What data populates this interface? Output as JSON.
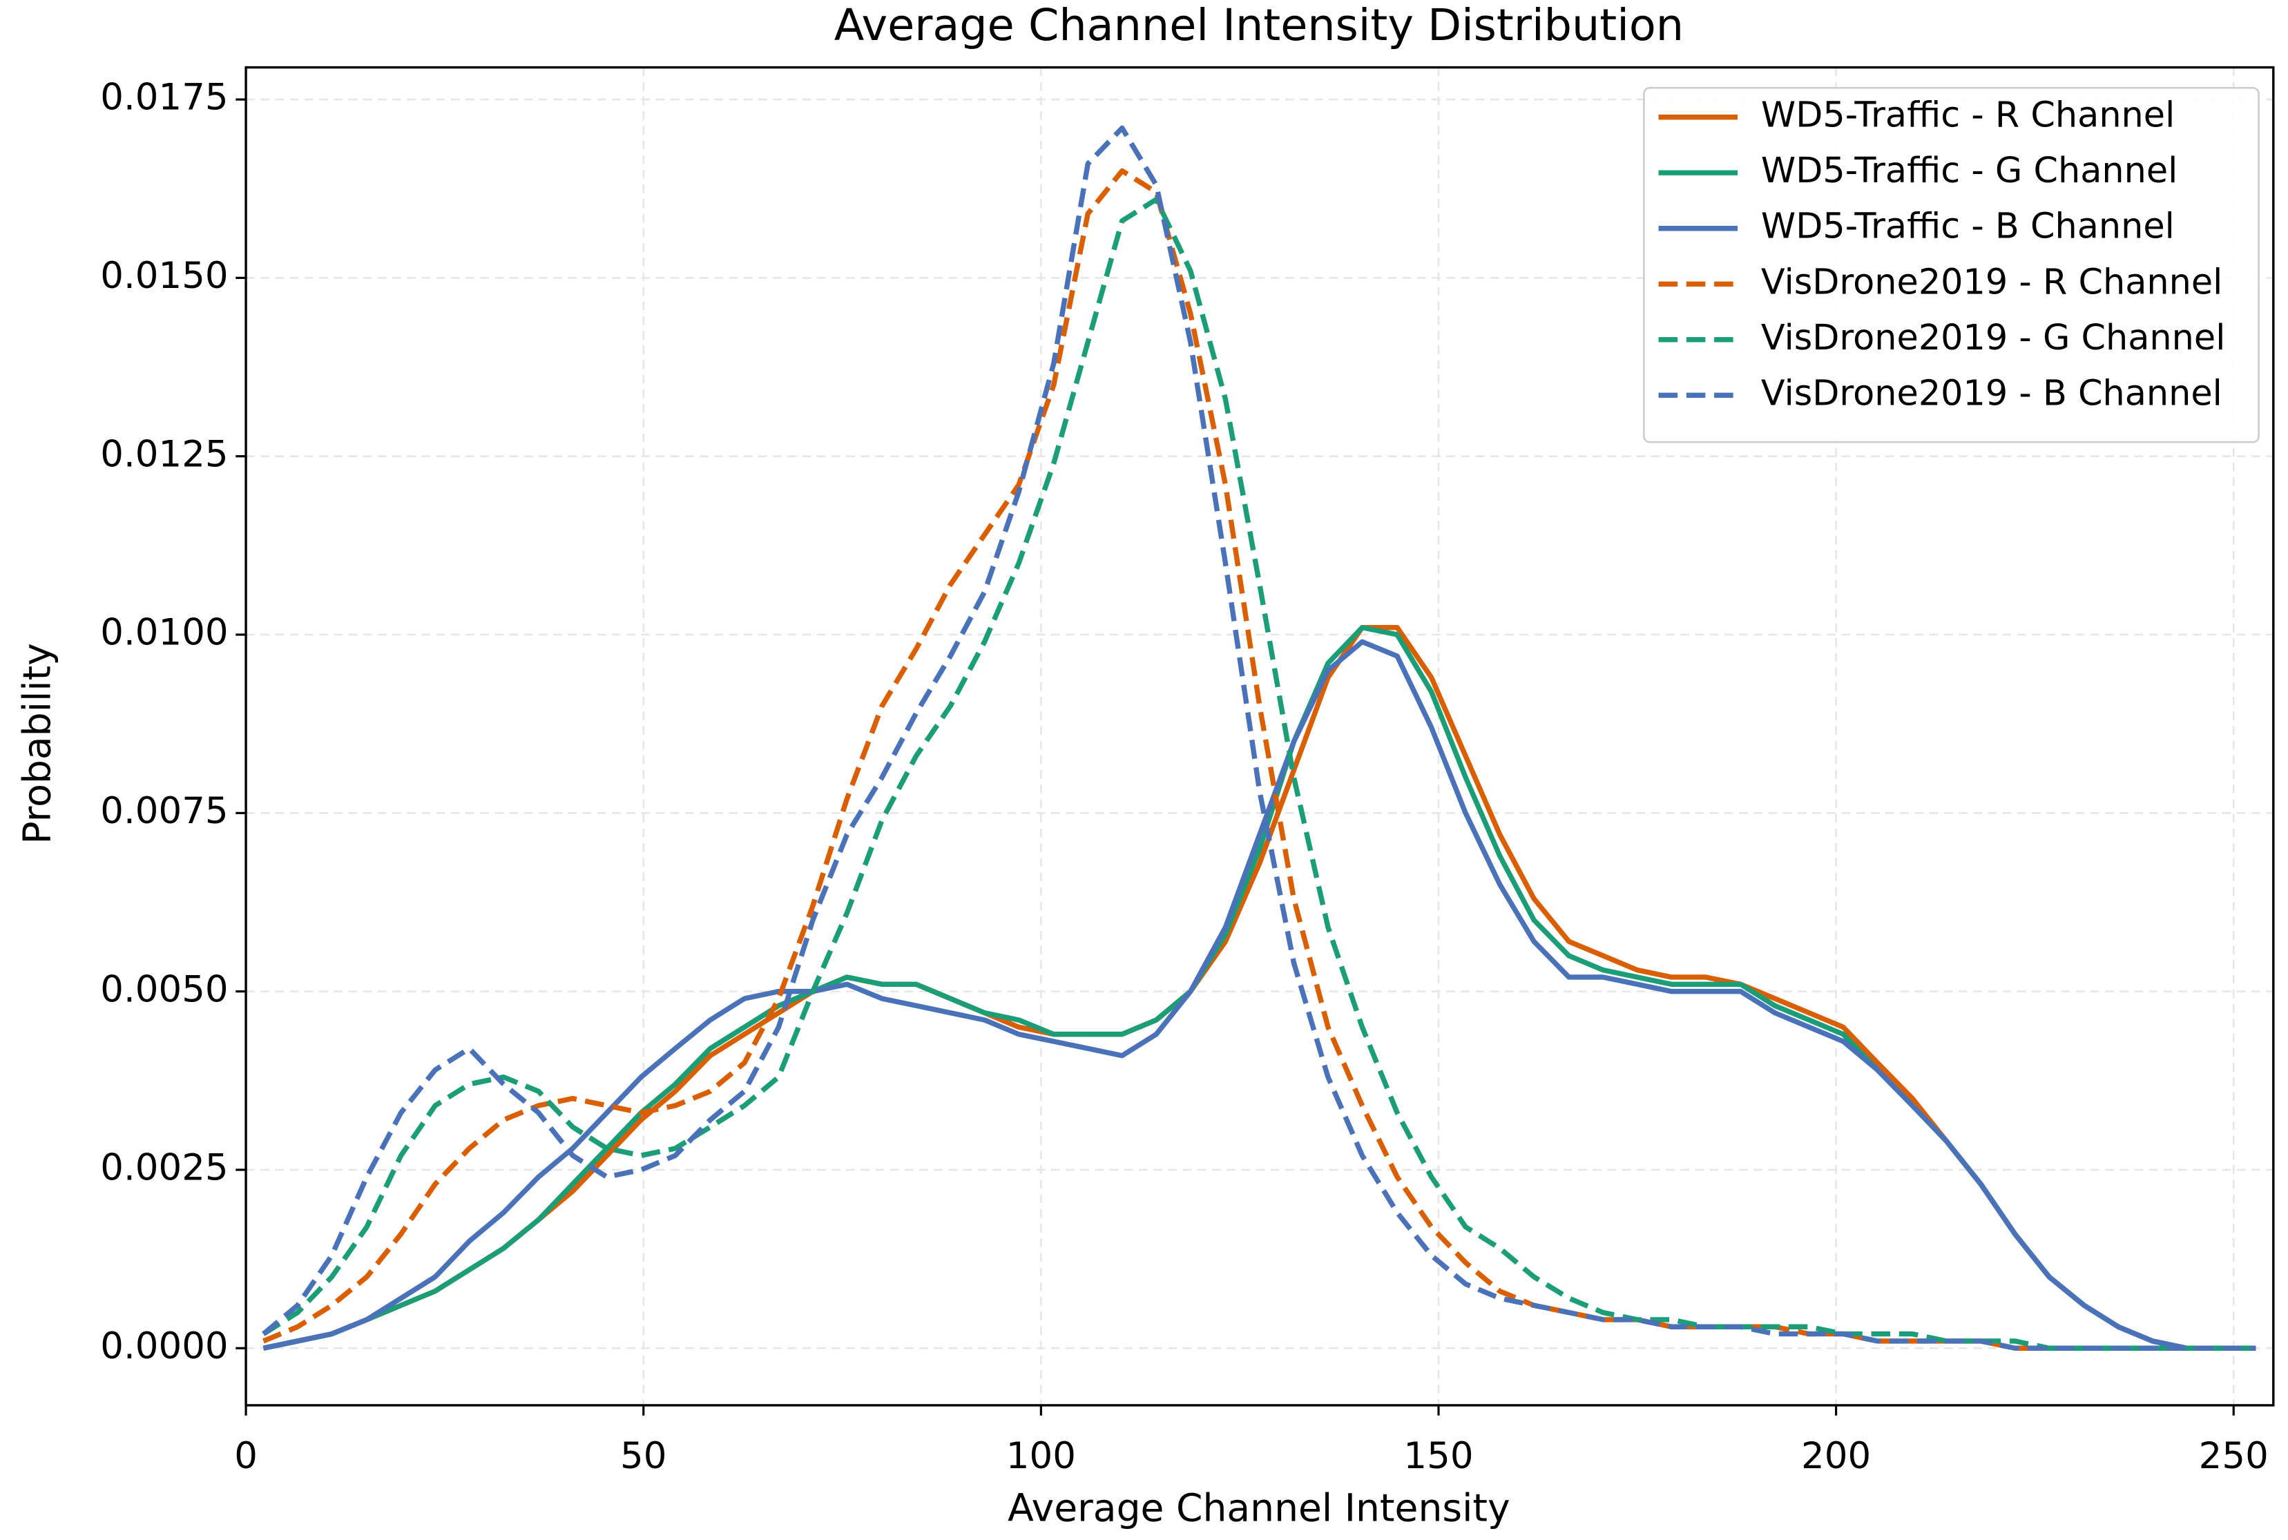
{
  "chart_data": {
    "type": "line",
    "title": "Average Channel Intensity Distribution",
    "x_label": "Average Channel Intensity",
    "y_label": "Probability",
    "x": [
      2.2,
      6.5,
      10.8,
      15.2,
      19.5,
      23.8,
      28.1,
      32.4,
      36.8,
      41.1,
      45.4,
      49.7,
      54.0,
      58.4,
      62.7,
      67.0,
      71.3,
      75.6,
      80.0,
      84.3,
      88.6,
      92.9,
      97.2,
      101.6,
      105.9,
      110.2,
      114.5,
      118.8,
      123.2,
      127.5,
      131.8,
      136.1,
      140.4,
      144.8,
      149.1,
      153.4,
      157.7,
      162.0,
      166.4,
      170.7,
      175.0,
      179.3,
      183.6,
      188.0,
      192.3,
      196.6,
      200.9,
      205.2,
      209.6,
      213.9,
      218.2,
      222.5,
      226.8,
      231.2,
      235.5,
      239.8,
      244.1,
      248.4,
      252.8
    ],
    "series": [
      {
        "name": "WD5-Traffic - R Channel",
        "color": "#d95f02",
        "linestyle": "solid",
        "values": [
          0,
          0.0001,
          0.0002,
          0.0004,
          0.0006,
          0.0008,
          0.0011,
          0.0014,
          0.0018,
          0.0022,
          0.0027,
          0.0032,
          0.0036,
          0.0041,
          0.0044,
          0.0047,
          0.005,
          0.0052,
          0.0051,
          0.0051,
          0.0049,
          0.0047,
          0.0045,
          0.0044,
          0.0044,
          0.0044,
          0.0046,
          0.005,
          0.0057,
          0.0068,
          0.0081,
          0.0094,
          0.0101,
          0.0101,
          0.0094,
          0.0083,
          0.0072,
          0.0063,
          0.0057,
          0.0055,
          0.0053,
          0.0052,
          0.0052,
          0.0051,
          0.0049,
          0.0047,
          0.0045,
          0.004,
          0.0035,
          0.0029,
          0.0023,
          0.0016,
          0.001,
          0.0006,
          0.0003,
          0.0001,
          0,
          0,
          0
        ]
      },
      {
        "name": "WD5-Traffic - G Channel",
        "color": "#1b9e77",
        "linestyle": "solid",
        "values": [
          0,
          0.0001,
          0.0002,
          0.0004,
          0.0006,
          0.0008,
          0.0011,
          0.0014,
          0.0018,
          0.0023,
          0.0028,
          0.0033,
          0.0037,
          0.0042,
          0.0045,
          0.0048,
          0.005,
          0.0052,
          0.0051,
          0.0051,
          0.0049,
          0.0047,
          0.0046,
          0.0044,
          0.0044,
          0.0044,
          0.0046,
          0.005,
          0.0058,
          0.007,
          0.0085,
          0.0096,
          0.0101,
          0.01,
          0.0092,
          0.008,
          0.0069,
          0.006,
          0.0055,
          0.0053,
          0.0052,
          0.0051,
          0.0051,
          0.0051,
          0.0048,
          0.0046,
          0.0044,
          0.0039,
          0.0034,
          0.0029,
          0.0023,
          0.0016,
          0.001,
          0.0006,
          0.0003,
          0.0001,
          0,
          0,
          0
        ]
      },
      {
        "name": "WD5-Traffic - B Channel",
        "color": "#4a72b8",
        "linestyle": "solid",
        "values": [
          0,
          0.0001,
          0.0002,
          0.0004,
          0.0007,
          0.001,
          0.0015,
          0.0019,
          0.0024,
          0.0028,
          0.0033,
          0.0038,
          0.0042,
          0.0046,
          0.0049,
          0.005,
          0.005,
          0.0051,
          0.0049,
          0.0048,
          0.0047,
          0.0046,
          0.0044,
          0.0043,
          0.0042,
          0.0041,
          0.0044,
          0.005,
          0.0059,
          0.0072,
          0.0085,
          0.0095,
          0.0099,
          0.0097,
          0.0087,
          0.0075,
          0.0065,
          0.0057,
          0.0052,
          0.0052,
          0.0051,
          0.005,
          0.005,
          0.005,
          0.0047,
          0.0045,
          0.0043,
          0.0039,
          0.0034,
          0.0029,
          0.0023,
          0.0016,
          0.001,
          0.0006,
          0.0003,
          0.0001,
          0,
          0,
          0
        ]
      },
      {
        "name": "VisDrone2019 - R Channel",
        "color": "#d95f02",
        "linestyle": "dashed",
        "values": [
          0.0001,
          0.0003,
          0.0006,
          0.001,
          0.0016,
          0.0023,
          0.0028,
          0.0032,
          0.0034,
          0.0035,
          0.0034,
          0.0033,
          0.0034,
          0.0036,
          0.004,
          0.0049,
          0.0062,
          0.0077,
          0.009,
          0.0098,
          0.0107,
          0.0114,
          0.0121,
          0.0135,
          0.0159,
          0.0165,
          0.0162,
          0.0145,
          0.0121,
          0.009,
          0.0063,
          0.0045,
          0.0034,
          0.0024,
          0.0017,
          0.0012,
          0.0008,
          0.0006,
          0.0005,
          0.0004,
          0.0004,
          0.0003,
          0.0003,
          0.0003,
          0.0003,
          0.0002,
          0.0002,
          0.0001,
          0.0001,
          0.0001,
          0.0001,
          0,
          0,
          0,
          0,
          0,
          0,
          0,
          0
        ]
      },
      {
        "name": "VisDrone2019 - G Channel",
        "color": "#1b9e77",
        "linestyle": "dashed",
        "values": [
          0.0002,
          0.0005,
          0.001,
          0.0017,
          0.0027,
          0.0034,
          0.0037,
          0.0038,
          0.0036,
          0.0031,
          0.0028,
          0.0027,
          0.0028,
          0.0031,
          0.0034,
          0.0038,
          0.005,
          0.0061,
          0.0074,
          0.0083,
          0.009,
          0.0099,
          0.011,
          0.0124,
          0.0141,
          0.0158,
          0.0161,
          0.0151,
          0.0133,
          0.0107,
          0.008,
          0.0059,
          0.0045,
          0.0033,
          0.0024,
          0.0017,
          0.0014,
          0.001,
          0.0007,
          0.0005,
          0.0004,
          0.0004,
          0.0003,
          0.0003,
          0.0003,
          0.0003,
          0.0002,
          0.0002,
          0.0002,
          0.0001,
          0.0001,
          0.0001,
          0,
          0,
          0,
          0,
          0,
          0,
          0
        ]
      },
      {
        "name": "VisDrone2019 - B Channel",
        "color": "#4a72b8",
        "linestyle": "dashed",
        "values": [
          0.0002,
          0.0006,
          0.0013,
          0.0024,
          0.0033,
          0.0039,
          0.0042,
          0.0037,
          0.0033,
          0.0027,
          0.0024,
          0.0025,
          0.0027,
          0.0032,
          0.0036,
          0.0045,
          0.006,
          0.0072,
          0.008,
          0.0089,
          0.0097,
          0.0106,
          0.012,
          0.0138,
          0.0166,
          0.0171,
          0.0163,
          0.0141,
          0.011,
          0.0078,
          0.0054,
          0.0038,
          0.0027,
          0.0019,
          0.0013,
          0.0009,
          0.0007,
          0.0006,
          0.0005,
          0.0004,
          0.0004,
          0.0003,
          0.0003,
          0.0003,
          0.0002,
          0.0002,
          0.0002,
          0.0001,
          0.0001,
          0.0001,
          0.0001,
          0,
          0,
          0,
          0,
          0,
          0,
          0,
          0
        ]
      }
    ],
    "xlim": [
      0,
      255
    ],
    "ylim": [
      -0.0008,
      0.01795
    ],
    "xticks": [
      0,
      50,
      100,
      150,
      200,
      250
    ],
    "yticks": [
      {
        "value": 0,
        "label": "0.0000"
      },
      0.0025,
      {
        "value": 0.005,
        "label": "0.0050"
      },
      0.0075,
      {
        "value": 0.01,
        "label": "0.0100"
      },
      0.0125,
      {
        "value": 0.015,
        "label": "0.0150"
      },
      0.0175
    ],
    "grid": true,
    "legend": "upper right"
  }
}
